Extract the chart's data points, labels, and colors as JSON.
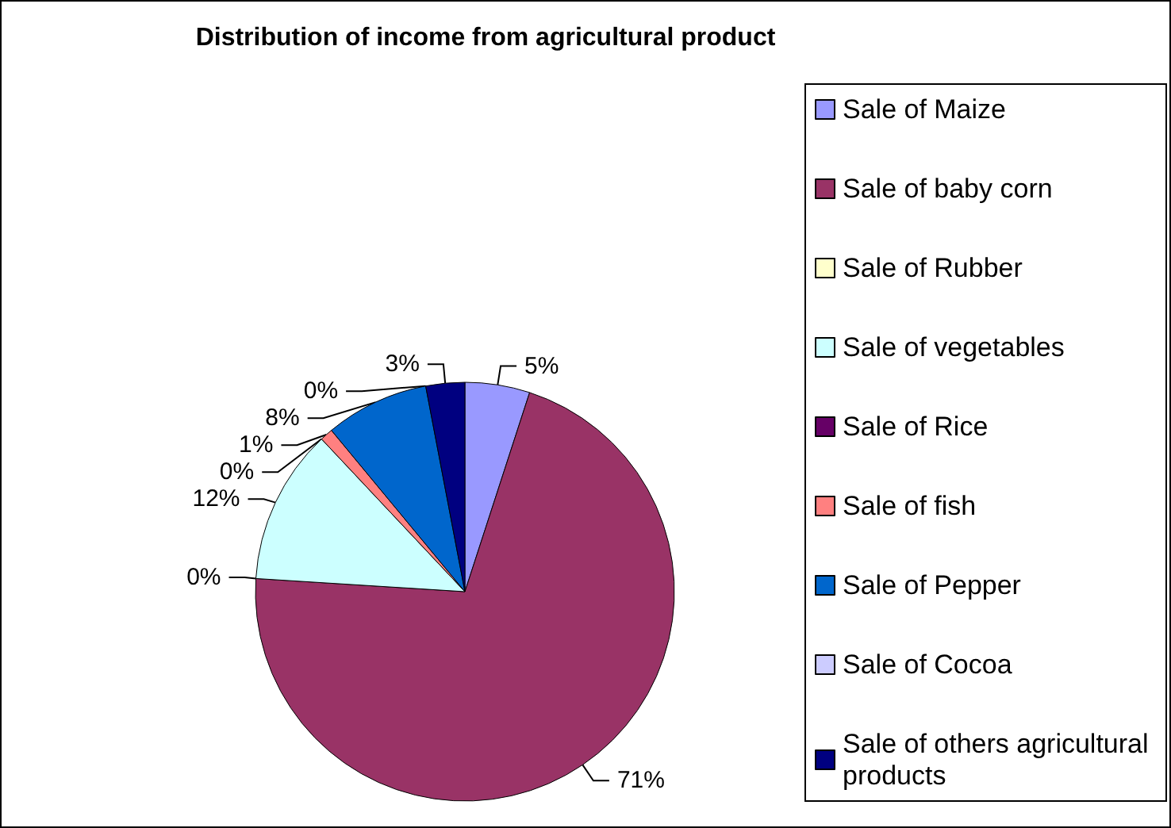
{
  "chart_data": {
    "type": "pie",
    "title": "Distribution of income from agricultural product",
    "categories": [
      "Sale of Maize",
      "Sale of baby corn",
      "Sale of Rubber",
      "Sale of vegetables",
      "Sale of Rice",
      "Sale of fish",
      "Sale of Pepper",
      "Sale of Cocoa",
      "Sale of others agricultural products"
    ],
    "values": [
      5,
      71,
      0,
      12,
      0,
      1,
      8,
      0,
      3
    ],
    "value_labels": [
      "5%",
      "71%",
      "0%",
      "12%",
      "0%",
      "1%",
      "8%",
      "0%",
      "3%"
    ],
    "colors": [
      "#9999ff",
      "#993366",
      "#ffffcc",
      "#ccffff",
      "#660066",
      "#ff8080",
      "#0066cc",
      "#ccccff",
      "#000080"
    ],
    "legend": "right"
  }
}
